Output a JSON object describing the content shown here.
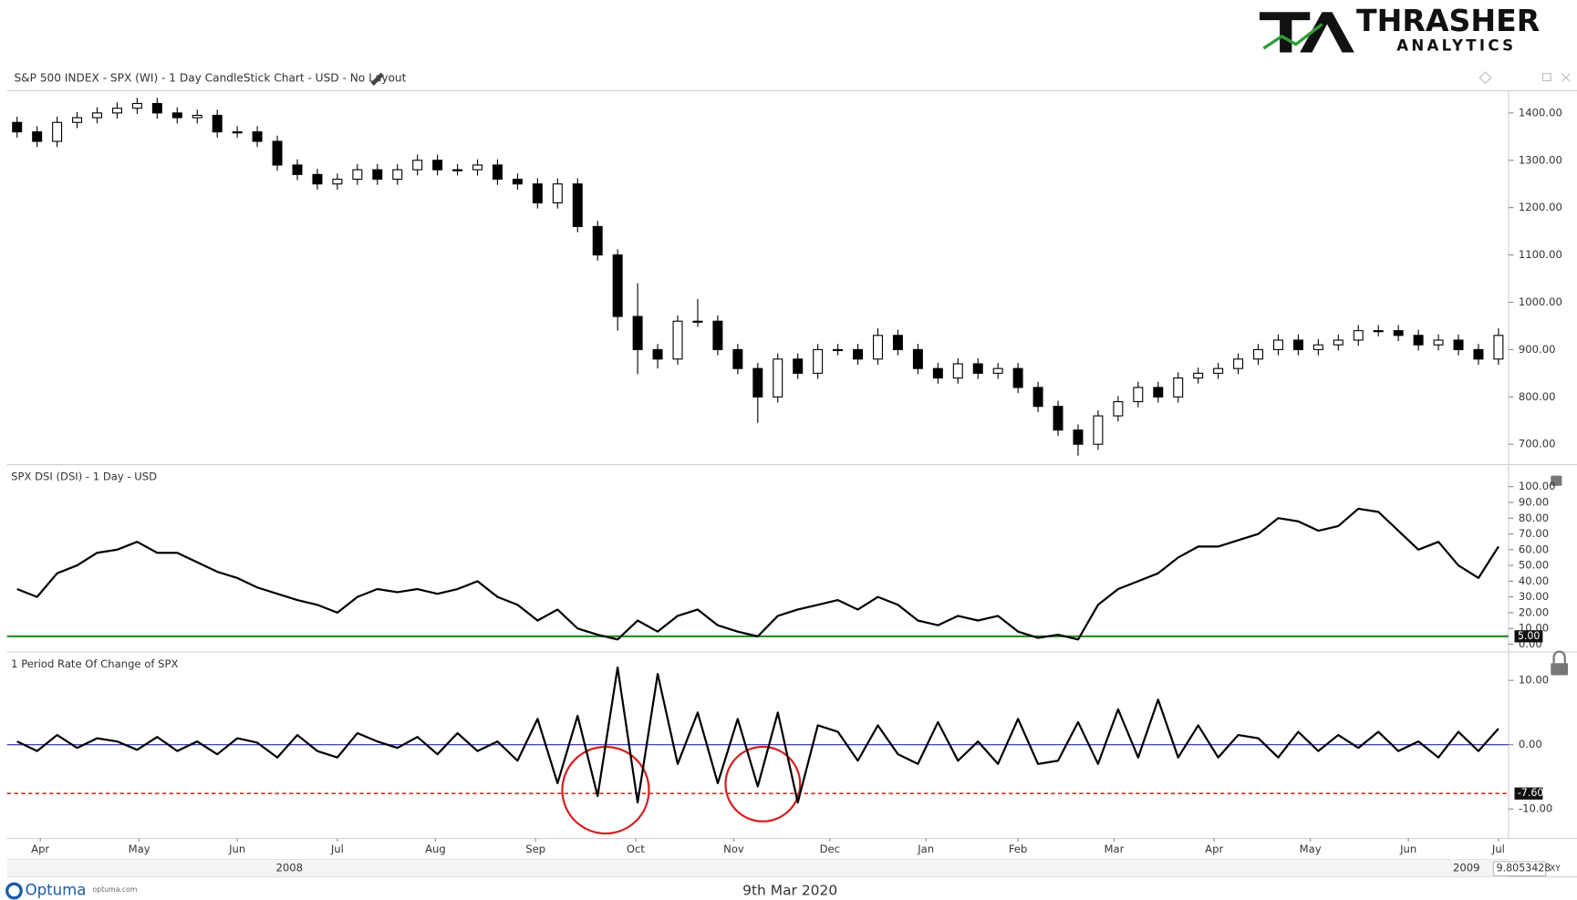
{
  "header": {
    "logo_main": "THRASHER",
    "logo_sub": "ANALYTICS",
    "chart_title": "S&P 500 INDEX - SPX (WI) - 1 Day CandleStick Chart - USD - No Layout"
  },
  "footer": {
    "brand": "Optuma",
    "brand_url": "optuma.com",
    "date": "9th Mar 2020",
    "readout": "9.8053428",
    "readout_mode": "XY"
  },
  "x_axis": {
    "xlim": [
      0,
      75
    ],
    "month_ticks": [
      {
        "value": 1.66,
        "label": "Apr"
      },
      {
        "value": 6.6,
        "label": "May"
      },
      {
        "value": 11.5,
        "label": "Jun"
      },
      {
        "value": 16.5,
        "label": "Jul"
      },
      {
        "value": 21.4,
        "label": "Aug"
      },
      {
        "value": 26.4,
        "label": "Sep"
      },
      {
        "value": 31.4,
        "label": "Oct"
      },
      {
        "value": 36.3,
        "label": "Nov"
      },
      {
        "value": 41.1,
        "label": "Dec"
      },
      {
        "value": 45.9,
        "label": "Jan"
      },
      {
        "value": 50.5,
        "label": "Feb"
      },
      {
        "value": 55.3,
        "label": "Mar"
      },
      {
        "value": 60.3,
        "label": "Apr"
      },
      {
        "value": 65.1,
        "label": "May"
      },
      {
        "value": 70.0,
        "label": "Jun"
      },
      {
        "value": 74.5,
        "label": "Jul"
      }
    ],
    "year_ticks": [
      {
        "value": 14.1,
        "label": "2008"
      },
      {
        "value": 72.9,
        "label": "2009"
      }
    ]
  },
  "chart_data": [
    {
      "type": "candlestick",
      "title": "S&P 500 INDEX - SPX (WI) - 1 Day CandleStick Chart - USD - No Layout",
      "color": "#000000",
      "open": [
        1380,
        1360,
        1340,
        1380,
        1390,
        1400,
        1410,
        1420,
        1400,
        1390,
        1395,
        1360,
        1360,
        1340,
        1290,
        1270,
        1250,
        1260,
        1280,
        1260,
        1280,
        1300,
        1280,
        1280,
        1290,
        1260,
        1250,
        1210,
        1250,
        1160,
        1100,
        970,
        900,
        880,
        960,
        960,
        900,
        860,
        800,
        880,
        850,
        900,
        900,
        880,
        930,
        900,
        860,
        840,
        870,
        850,
        860,
        820,
        780,
        730,
        700,
        760,
        790,
        820,
        800,
        840,
        850,
        860,
        880,
        900,
        920,
        900,
        910,
        920,
        940,
        940,
        930,
        910,
        920,
        900,
        880
      ],
      "high": [
        1392,
        1372,
        1392,
        1402,
        1412,
        1422,
        1432,
        1432,
        1412,
        1407,
        1407,
        1372,
        1372,
        1352,
        1302,
        1282,
        1272,
        1292,
        1292,
        1292,
        1312,
        1312,
        1292,
        1302,
        1302,
        1272,
        1262,
        1262,
        1262,
        1172,
        1112,
        1040,
        912,
        972,
        1007,
        972,
        912,
        872,
        892,
        892,
        912,
        912,
        912,
        945,
        942,
        912,
        872,
        882,
        882,
        872,
        872,
        832,
        792,
        742,
        772,
        802,
        832,
        832,
        852,
        862,
        872,
        892,
        912,
        932,
        932,
        922,
        932,
        952,
        952,
        952,
        942,
        932,
        932,
        912,
        945
      ],
      "low": [
        1348,
        1328,
        1328,
        1368,
        1378,
        1388,
        1398,
        1388,
        1378,
        1378,
        1348,
        1348,
        1328,
        1278,
        1258,
        1238,
        1238,
        1248,
        1248,
        1248,
        1268,
        1268,
        1268,
        1268,
        1248,
        1238,
        1198,
        1198,
        1148,
        1088,
        940,
        848,
        860,
        868,
        948,
        888,
        848,
        745,
        788,
        838,
        838,
        888,
        868,
        868,
        888,
        848,
        828,
        828,
        838,
        838,
        808,
        768,
        718,
        676,
        688,
        748,
        778,
        788,
        788,
        828,
        838,
        848,
        868,
        888,
        888,
        888,
        898,
        908,
        928,
        918,
        898,
        898,
        888,
        868,
        868
      ],
      "close": [
        1360,
        1340,
        1380,
        1390,
        1400,
        1410,
        1420,
        1400,
        1390,
        1395,
        1360,
        1360,
        1340,
        1290,
        1270,
        1250,
        1260,
        1280,
        1260,
        1280,
        1300,
        1280,
        1280,
        1290,
        1260,
        1250,
        1210,
        1250,
        1160,
        1100,
        970,
        900,
        880,
        960,
        960,
        900,
        860,
        800,
        880,
        850,
        900,
        900,
        880,
        930,
        900,
        860,
        840,
        870,
        850,
        860,
        820,
        780,
        730,
        700,
        760,
        790,
        820,
        800,
        840,
        850,
        860,
        880,
        900,
        920,
        900,
        910,
        920,
        940,
        940,
        930,
        910,
        920,
        900,
        880,
        930
      ],
      "ylim": [
        657,
        1447
      ],
      "yticks": [
        {
          "value": 1400,
          "label": "1400.00"
        },
        {
          "value": 1300,
          "label": "1300.00"
        },
        {
          "value": 1200,
          "label": "1200.00"
        },
        {
          "value": 1100,
          "label": "1100.00"
        },
        {
          "value": 1000,
          "label": "1000.00"
        },
        {
          "value": 900,
          "label": "900.00"
        },
        {
          "value": 800,
          "label": "800.00"
        },
        {
          "value": 700,
          "label": "700.00"
        }
      ]
    },
    {
      "type": "line",
      "title": "SPX DSI (DSI) - 1 Day - USD",
      "color": "#000000",
      "values": [
        35,
        30,
        45,
        50,
        58,
        60,
        65,
        58,
        58,
        52,
        46,
        42,
        36,
        32,
        28,
        25,
        20,
        30,
        35,
        33,
        35,
        32,
        35,
        40,
        30,
        25,
        15,
        22,
        10,
        6,
        3,
        15,
        8,
        18,
        22,
        12,
        8,
        5,
        18,
        22,
        25,
        28,
        22,
        30,
        25,
        15,
        12,
        18,
        15,
        18,
        8,
        4,
        6,
        3,
        25,
        35,
        40,
        45,
        55,
        62,
        62,
        66,
        70,
        80,
        78,
        72,
        75,
        86,
        84,
        72,
        60,
        65,
        50,
        42,
        62
      ],
      "ylim": [
        -5,
        114
      ],
      "yticks": [
        {
          "value": 100,
          "label": "100.00"
        },
        {
          "value": 90,
          "label": "90.00"
        },
        {
          "value": 80,
          "label": "80.00"
        },
        {
          "value": 70,
          "label": "70.00"
        },
        {
          "value": 60,
          "label": "60.00"
        },
        {
          "value": 50,
          "label": "50.00"
        },
        {
          "value": 40,
          "label": "40.00"
        },
        {
          "value": 30,
          "label": "30.00"
        },
        {
          "value": 20,
          "label": "20.00"
        },
        {
          "value": 10,
          "label": "10.00"
        },
        {
          "value": 0,
          "label": "0.00"
        }
      ],
      "level": {
        "value": 5,
        "label": "5.00",
        "color": "#1e8a1e",
        "style": "solid"
      }
    },
    {
      "type": "line",
      "title": "1 Period Rate Of Change of SPX",
      "color": "#000000",
      "values": [
        0.5,
        -1,
        1.5,
        -0.5,
        1,
        0.5,
        -0.8,
        1.2,
        -1,
        0.5,
        -1.5,
        1,
        0.3,
        -2,
        1.5,
        -1,
        -2,
        1.8,
        0.5,
        -0.5,
        1.2,
        -1.5,
        1.8,
        -1,
        0.5,
        -2.5,
        4,
        -6,
        4.5,
        -8,
        12,
        -9,
        11,
        -3,
        5,
        -6,
        4,
        -6.5,
        5,
        -9,
        3,
        2,
        -2.5,
        3,
        -1.5,
        -3,
        3.5,
        -2.5,
        0.5,
        -3,
        4,
        -3,
        -2.5,
        3.5,
        -3,
        5.5,
        -2,
        7,
        -2,
        3,
        -2,
        1.5,
        1,
        -2,
        2,
        -1,
        1.5,
        -0.5,
        2,
        -1,
        0.5,
        -2,
        2,
        -1,
        2.5
      ],
      "ylim": [
        -14.6,
        14.4
      ],
      "yticks": [
        {
          "value": 10,
          "label": "10.00"
        },
        {
          "value": 0,
          "label": "0.00"
        },
        {
          "value": -10,
          "label": "-10.00"
        }
      ],
      "zero_line": {
        "value": 0,
        "color": "#2a2aa8"
      },
      "level": {
        "value": -7.6,
        "label": "-7.60",
        "color": "#c0392b",
        "style": "dashed"
      }
    }
  ]
}
